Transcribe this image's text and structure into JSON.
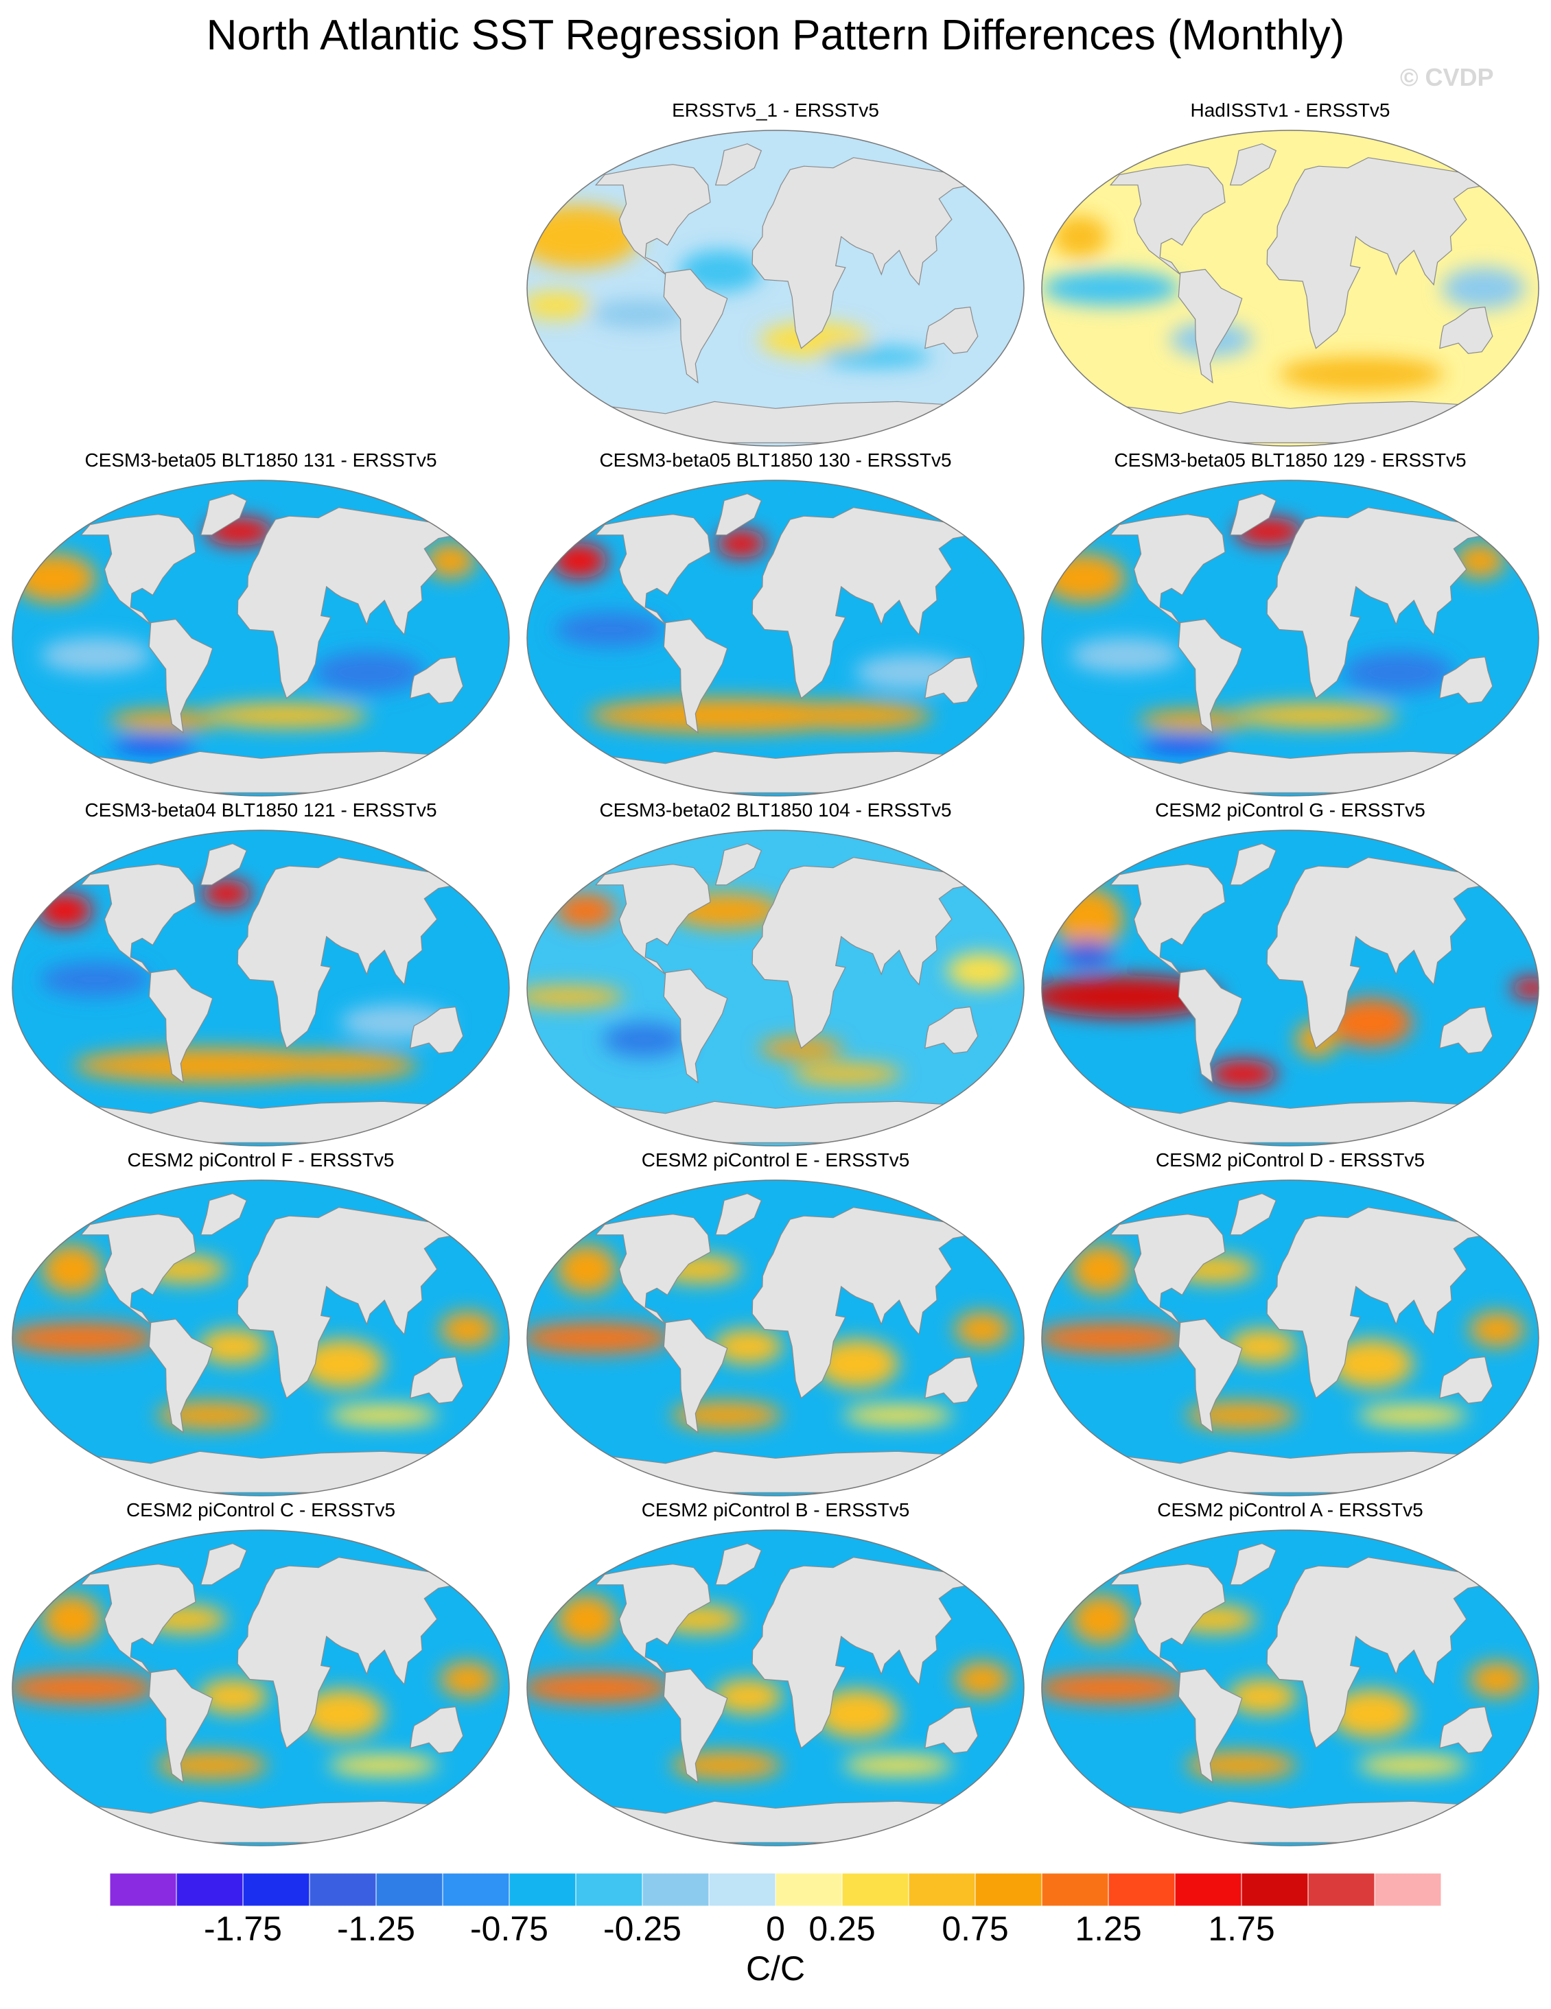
{
  "figure": {
    "title": "North Atlantic SST Regression Pattern Differences (Monthly)",
    "watermark": "© CVDP",
    "units": "C/C"
  },
  "panels": [
    {
      "title": "ERSSTv5_1 - ERSSTv5",
      "pattern": "weak-mixed"
    },
    {
      "title": "HadISSTv1 - ERSSTv5",
      "pattern": "weak-mixed-warm-south"
    },
    {
      "title": "CESM3-beta05 BLT1850 131 - ERSSTv5",
      "pattern": "cool-tropics-warm-north"
    },
    {
      "title": "CESM3-beta05 BLT1850 130 - ERSSTv5",
      "pattern": "cool-tropics-warm-south"
    },
    {
      "title": "CESM3-beta05 BLT1850 129 - ERSSTv5",
      "pattern": "cool-tropics-warm-north"
    },
    {
      "title": "CESM3-beta04 BLT1850 121 - ERSSTv5",
      "pattern": "cool-tropics-warm-south"
    },
    {
      "title": "CESM3-beta02 BLT1850 104 - ERSSTv5",
      "pattern": "mixed"
    },
    {
      "title": "CESM2 piControl G - ERSSTv5",
      "pattern": "strong-warm-tropical-pacific"
    },
    {
      "title": "CESM2 piControl F - ERSSTv5",
      "pattern": "warm-tropics"
    },
    {
      "title": "CESM2 piControl E - ERSSTv5",
      "pattern": "warm-tropics"
    },
    {
      "title": "CESM2 piControl D - ERSSTv5",
      "pattern": "warm-tropics"
    },
    {
      "title": "CESM2 piControl C - ERSSTv5",
      "pattern": "warm-tropics"
    },
    {
      "title": "CESM2 piControl B - ERSSTv5",
      "pattern": "warm-tropics"
    },
    {
      "title": "CESM2 piControl A - ERSSTv5",
      "pattern": "warm-tropics"
    }
  ],
  "colorbar": {
    "colors": [
      "#8a2be2",
      "#3a1ef0",
      "#1a2ff0",
      "#3a5fe0",
      "#2f7ee8",
      "#2f92f5",
      "#14b4f0",
      "#40c4f2",
      "#8ccbee",
      "#bfe3f7",
      "#fff59c",
      "#fde047",
      "#fbbf24",
      "#f8a208",
      "#f97316",
      "#ff4a1a",
      "#f20d0d",
      "#d20a0a",
      "#db3b3b",
      "#fbafb0"
    ],
    "tick_labels": [
      "-1.75",
      "-1.25",
      "-0.75",
      "-0.25",
      "0",
      "0.25",
      "0.75",
      "1.25",
      "1.75"
    ],
    "tick_boundaries": [
      2,
      4,
      6,
      8,
      10,
      11,
      13,
      15,
      17
    ]
  }
}
